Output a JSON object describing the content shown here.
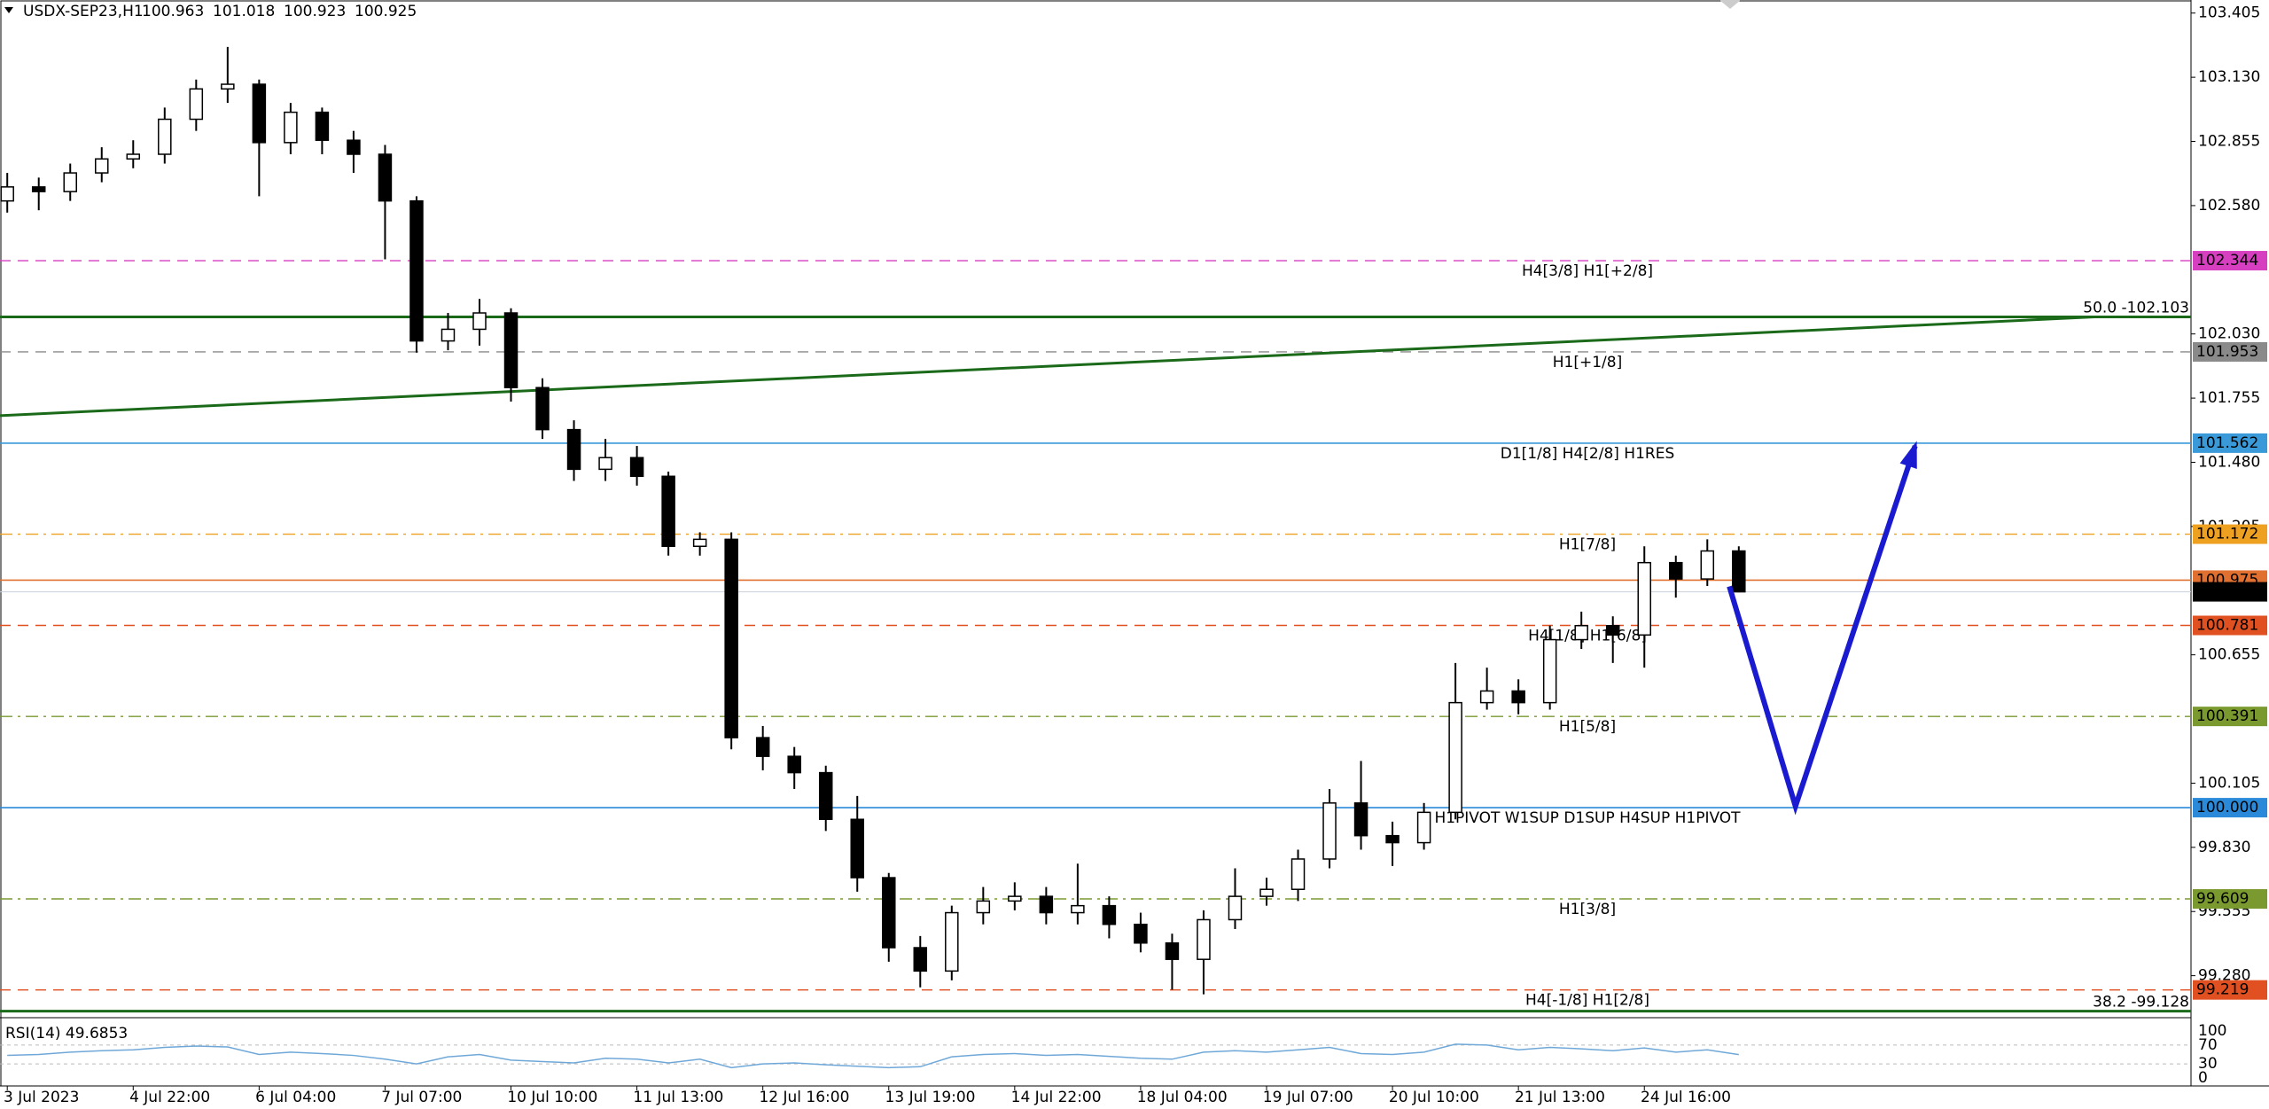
{
  "chart_data": {
    "type": "candlestick",
    "header": {
      "symbol": "USDX-SEP23,H1",
      "values": [
        100.963,
        101.018,
        100.923,
        100.925
      ]
    },
    "categories": [
      "3 Jul 2023",
      null,
      null,
      null,
      "4 Jul 22:00",
      null,
      null,
      null,
      "6 Jul 04:00",
      null,
      null,
      null,
      "7 Jul 07:00",
      null,
      null,
      null,
      "10 Jul 10:00",
      null,
      null,
      null,
      "11 Jul 13:00",
      null,
      null,
      null,
      "12 Jul 16:00",
      null,
      null,
      null,
      "13 Jul 19:00",
      null,
      null,
      null,
      "14 Jul 22:00",
      null,
      null,
      null,
      "18 Jul 04:00",
      null,
      null,
      null,
      "19 Jul 07:00",
      null,
      null,
      null,
      "20 Jul 10:00",
      null,
      null,
      null,
      "21 Jul 13:00",
      null,
      null,
      null,
      "24 Jul 16:00",
      null,
      null,
      null
    ],
    "open": [
      102.6,
      102.66,
      102.64,
      102.72,
      102.78,
      102.8,
      102.95,
      103.08,
      103.1,
      102.85,
      102.98,
      102.86,
      102.8,
      102.6,
      102.0,
      102.05,
      102.12,
      101.8,
      101.62,
      101.45,
      101.5,
      101.42,
      101.12,
      101.15,
      100.3,
      100.22,
      100.15,
      99.95,
      99.7,
      99.4,
      99.3,
      99.55,
      99.6,
      99.62,
      99.55,
      99.58,
      99.5,
      99.42,
      99.35,
      99.52,
      99.62,
      99.65,
      99.78,
      100.02,
      99.88,
      99.85,
      99.98,
      100.45,
      100.5,
      100.45,
      100.72,
      100.78,
      100.74,
      101.05,
      100.98,
      101.1
    ],
    "high": [
      102.72,
      102.7,
      102.76,
      102.83,
      102.86,
      103.0,
      103.12,
      103.26,
      103.12,
      103.02,
      103.0,
      102.9,
      102.84,
      102.62,
      102.12,
      102.18,
      102.14,
      101.84,
      101.66,
      101.58,
      101.55,
      101.44,
      101.18,
      101.18,
      100.35,
      100.26,
      100.18,
      100.05,
      99.72,
      99.45,
      99.58,
      99.66,
      99.68,
      99.66,
      99.76,
      99.62,
      99.55,
      99.46,
      99.56,
      99.74,
      99.7,
      99.82,
      100.08,
      100.2,
      99.94,
      100.02,
      100.62,
      100.6,
      100.55,
      100.78,
      100.84,
      100.82,
      101.12,
      101.08,
      101.15,
      101.12
    ],
    "low": [
      102.55,
      102.56,
      102.6,
      102.68,
      102.74,
      102.76,
      102.9,
      103.02,
      102.62,
      102.8,
      102.8,
      102.72,
      102.35,
      101.95,
      101.96,
      101.98,
      101.74,
      101.58,
      101.4,
      101.4,
      101.38,
      101.08,
      101.08,
      100.25,
      100.16,
      100.08,
      99.9,
      99.64,
      99.34,
      99.23,
      99.26,
      99.5,
      99.56,
      99.5,
      99.5,
      99.44,
      99.38,
      99.22,
      99.2,
      99.48,
      99.58,
      99.6,
      99.74,
      99.82,
      99.75,
      99.82,
      99.95,
      100.42,
      100.4,
      100.42,
      100.68,
      100.62,
      100.6,
      100.9,
      100.95,
      100.923
    ],
    "close": [
      102.66,
      102.64,
      102.72,
      102.78,
      102.8,
      102.95,
      103.08,
      103.1,
      102.85,
      102.98,
      102.86,
      102.8,
      102.6,
      102.0,
      102.05,
      102.12,
      101.8,
      101.62,
      101.45,
      101.5,
      101.42,
      101.12,
      101.15,
      100.3,
      100.22,
      100.15,
      99.95,
      99.7,
      99.4,
      99.3,
      99.55,
      99.6,
      99.62,
      99.55,
      99.58,
      99.5,
      99.42,
      99.35,
      99.52,
      99.62,
      99.65,
      99.78,
      100.02,
      99.88,
      99.85,
      99.98,
      100.45,
      100.5,
      100.45,
      100.72,
      100.78,
      100.74,
      101.05,
      100.98,
      101.1,
      100.925
    ],
    "ylim": [
      99.119,
      103.461
    ],
    "yticks": [
      {
        "value": 103.405,
        "label": "103.405"
      },
      {
        "value": 103.13,
        "label": "103.130"
      },
      {
        "value": 102.855,
        "label": "102.855"
      },
      {
        "value": 102.58,
        "label": "102.580"
      },
      {
        "value": 102.03,
        "label": "102.030"
      },
      {
        "value": 101.755,
        "label": "101.755"
      },
      {
        "value": 101.48,
        "label": "101.480"
      },
      {
        "value": 101.205,
        "label": "101.205"
      },
      {
        "value": 100.655,
        "label": "100.655"
      },
      {
        "value": 100.105,
        "label": "100.105"
      },
      {
        "value": 99.83,
        "label": "99.830"
      },
      {
        "value": 99.555,
        "label": "99.555"
      },
      {
        "value": 99.28,
        "label": "99.280"
      }
    ],
    "levels": [
      {
        "label": "H4[3/8] H1[+2/8]",
        "value": 102.344,
        "color": "#d63fc0",
        "style": "dashed"
      },
      {
        "label": "H1[+1/8]",
        "value": 101.953,
        "color": "#8a8a8a",
        "style": "dashed"
      },
      {
        "label": "D1[1/8] H4[2/8] H1RES",
        "value": 101.562,
        "color": "#3a9ad9",
        "style": "solid"
      },
      {
        "label": "H1[7/8]",
        "value": 101.172,
        "color": "#eea020",
        "style": "dashdot"
      },
      {
        "value": 100.975,
        "color": "#e07030",
        "style": "solid"
      },
      {
        "label": "H4[1/8] H1[6/8]",
        "value": 100.781,
        "color": "#e05020",
        "style": "dashed"
      },
      {
        "label": "H1[5/8]",
        "value": 100.391,
        "color": "#7a9a30",
        "style": "dashdot"
      },
      {
        "label": "H1PIVOT W1SUP D1SUP H4SUP H1PIVOT",
        "value": 100,
        "tag_label": "100.000",
        "color": "#2a8ad9",
        "style": "solid"
      },
      {
        "label": "H1[3/8]",
        "value": 99.609,
        "color": "#7a9a30",
        "style": "dashdot"
      },
      {
        "label": "H4[-1/8] H1[2/8]",
        "value": 99.219,
        "color": "#e05020",
        "style": "dashed"
      }
    ],
    "fib_levels": [
      {
        "label": "50.0 -102.103",
        "value": 102.103
      },
      {
        "label": "38.2 -99.128",
        "value": 99.128
      }
    ],
    "fib_color": "#1a6a1a",
    "current_price": 100.925,
    "trend_line": {
      "x": [
        0,
        66.3
      ],
      "y": [
        101.68,
        102.103
      ],
      "color": "#1a6a1a"
    },
    "arrow": {
      "x": [
        54.7,
        56.8,
        60.6
      ],
      "y": [
        100.948,
        100.006,
        101.55
      ],
      "color": "#1a1ad0"
    },
    "rsi": {
      "title": "RSI(14) 49.6853",
      "ylim": [
        0,
        100
      ],
      "yticks": [
        100,
        70,
        30,
        0
      ],
      "color": "#6fa8d8",
      "values": [
        48,
        50,
        55,
        58,
        60,
        65,
        68,
        66,
        50,
        55,
        52,
        48,
        40,
        30,
        45,
        50,
        38,
        35,
        32,
        42,
        40,
        32,
        40,
        22,
        30,
        32,
        28,
        25,
        22,
        24,
        45,
        50,
        52,
        48,
        50,
        46,
        42,
        40,
        55,
        58,
        55,
        60,
        65,
        52,
        50,
        55,
        72,
        70,
        60,
        65,
        62,
        58,
        64,
        55,
        60,
        49.6853
      ]
    }
  }
}
